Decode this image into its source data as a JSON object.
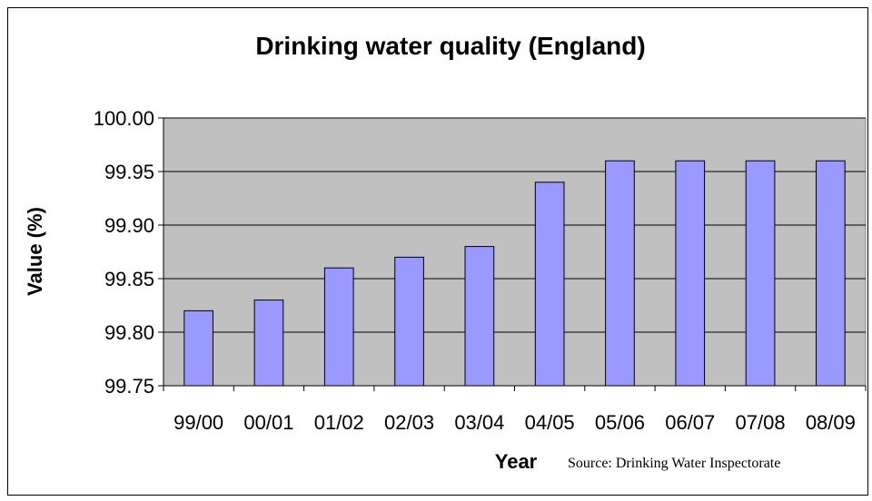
{
  "chart_data": {
    "type": "bar",
    "title": "Drinking water quality (England)",
    "xlabel": "Year",
    "ylabel": "Value (%)",
    "source": "Source: Drinking Water Inspectorate",
    "categories": [
      "99/00",
      "00/01",
      "01/02",
      "02/03",
      "03/04",
      "04/05",
      "05/06",
      "06/07",
      "07/08",
      "08/09"
    ],
    "values": [
      99.82,
      99.83,
      99.86,
      99.87,
      99.88,
      99.94,
      99.96,
      99.96,
      99.96,
      99.96
    ],
    "ylim": [
      99.75,
      100.0
    ],
    "yticks": [
      "99.75",
      "99.80",
      "99.85",
      "99.90",
      "99.95",
      "100.00"
    ],
    "grid": true,
    "legend": "none",
    "colors": {
      "bar": "#9999ff",
      "plot_background": "#c0c0c0",
      "outline": "#000000"
    }
  }
}
